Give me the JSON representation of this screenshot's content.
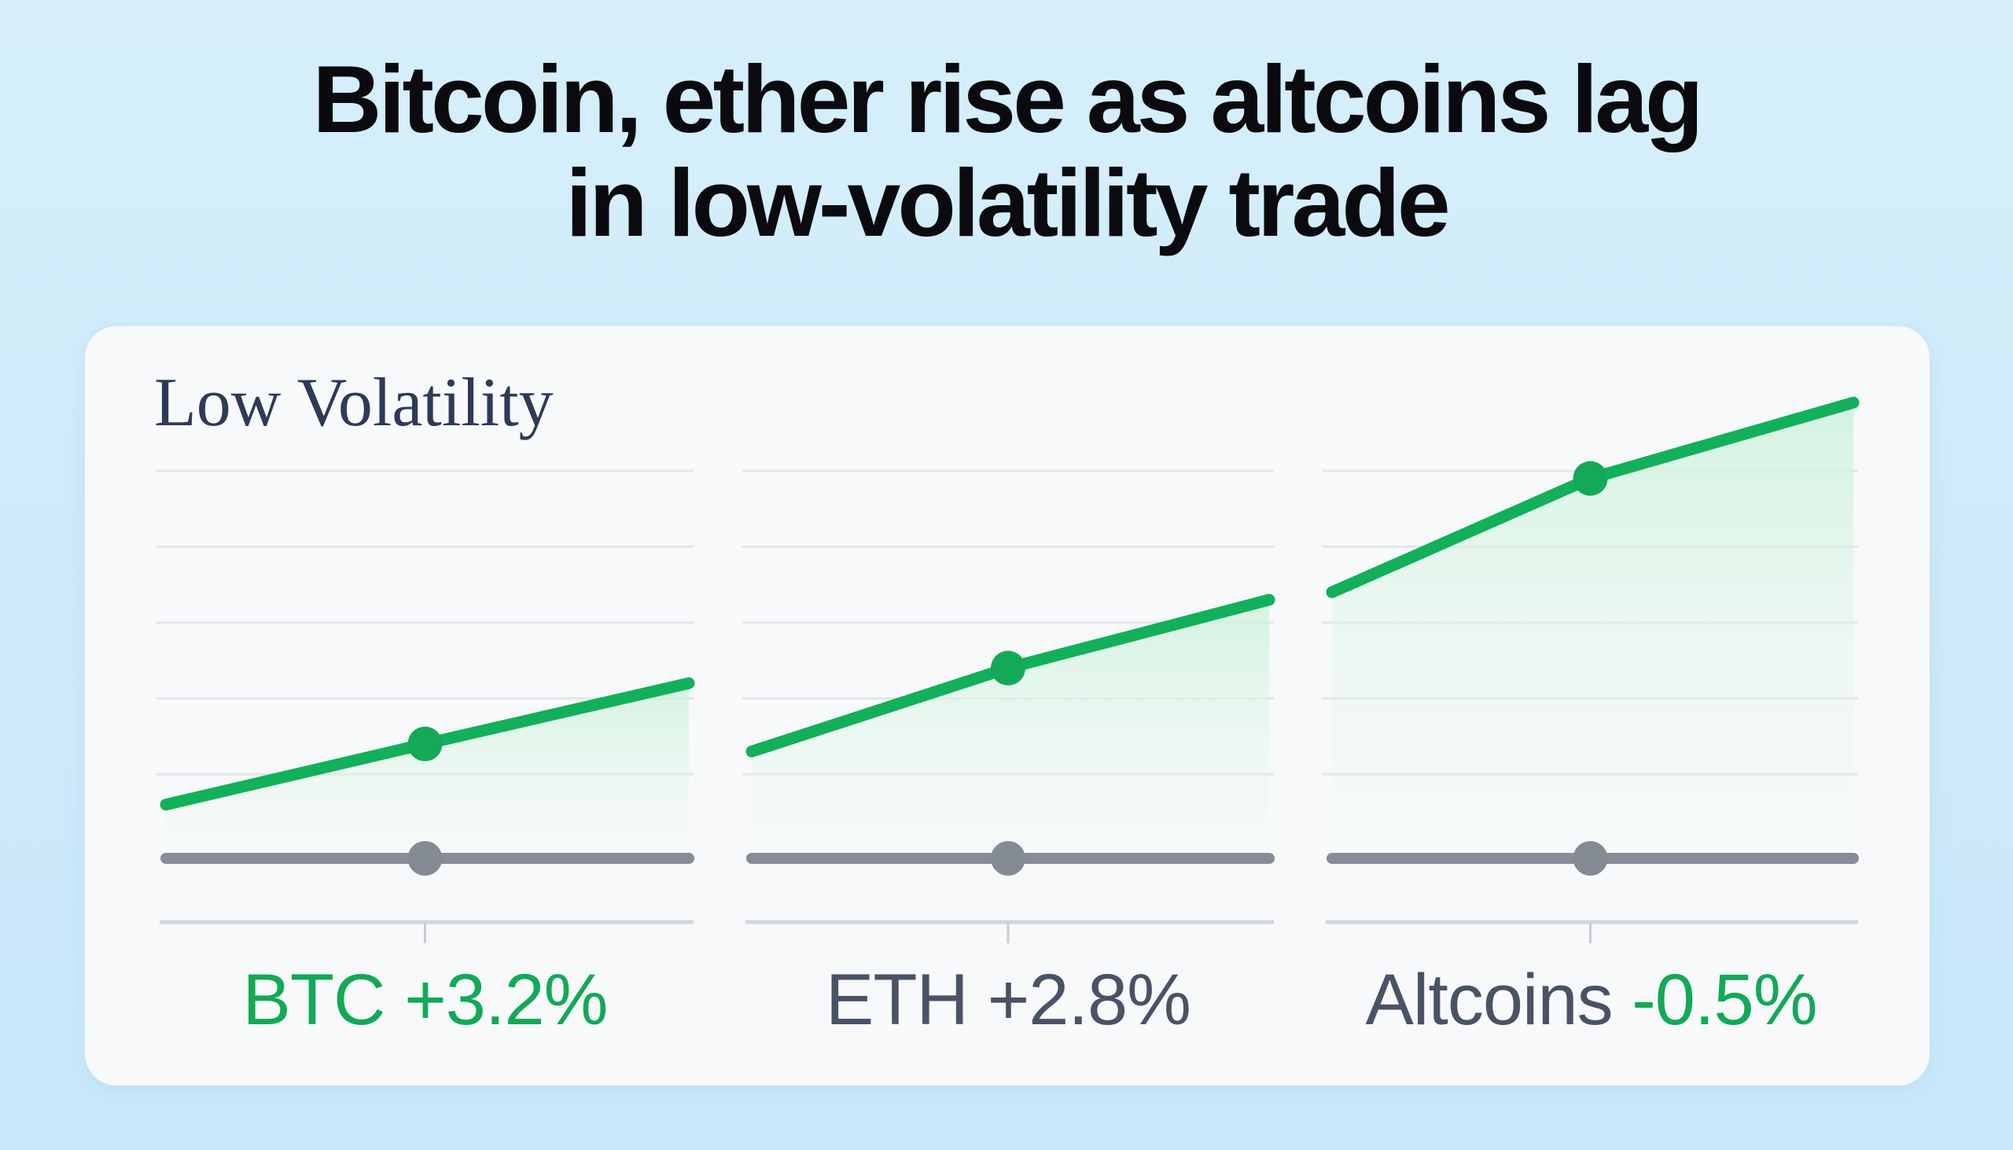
{
  "headline": {
    "line1": "Bitcoin, ether rise as altcoins lag",
    "line2": "in low-volatility trade"
  },
  "chart_data": {
    "type": "line",
    "title": "Low Volatility",
    "grid": true,
    "colors": {
      "up": "#12b05a",
      "flat": "#878d96",
      "fill": "#d9f5e4",
      "grid": "#e3e6ea",
      "text": "#4a5266"
    },
    "panels": [
      {
        "asset": "BTC",
        "change": "+3.2%",
        "label_color": "green",
        "series": [
          {
            "values": [
              0.6,
              1.4,
              2.2
            ],
            "color": "up"
          },
          {
            "values": [
              0,
              0,
              0
            ],
            "color": "flat"
          }
        ]
      },
      {
        "asset": "ETH",
        "change": "+2.8%",
        "label_color": "gray",
        "series": [
          {
            "values": [
              1.3,
              2.4,
              3.3
            ],
            "color": "up"
          },
          {
            "values": [
              0,
              0,
              0
            ],
            "color": "flat"
          }
        ]
      },
      {
        "asset": "Altcoins",
        "change": "-0.5%",
        "label_color": "split",
        "series": [
          {
            "values": [
              3.4,
              4.9,
              5.9
            ],
            "color": "up"
          },
          {
            "values": [
              0,
              0,
              0
            ],
            "color": "flat"
          }
        ]
      }
    ],
    "gridlines": [
      1,
      2,
      3,
      4,
      5
    ]
  }
}
